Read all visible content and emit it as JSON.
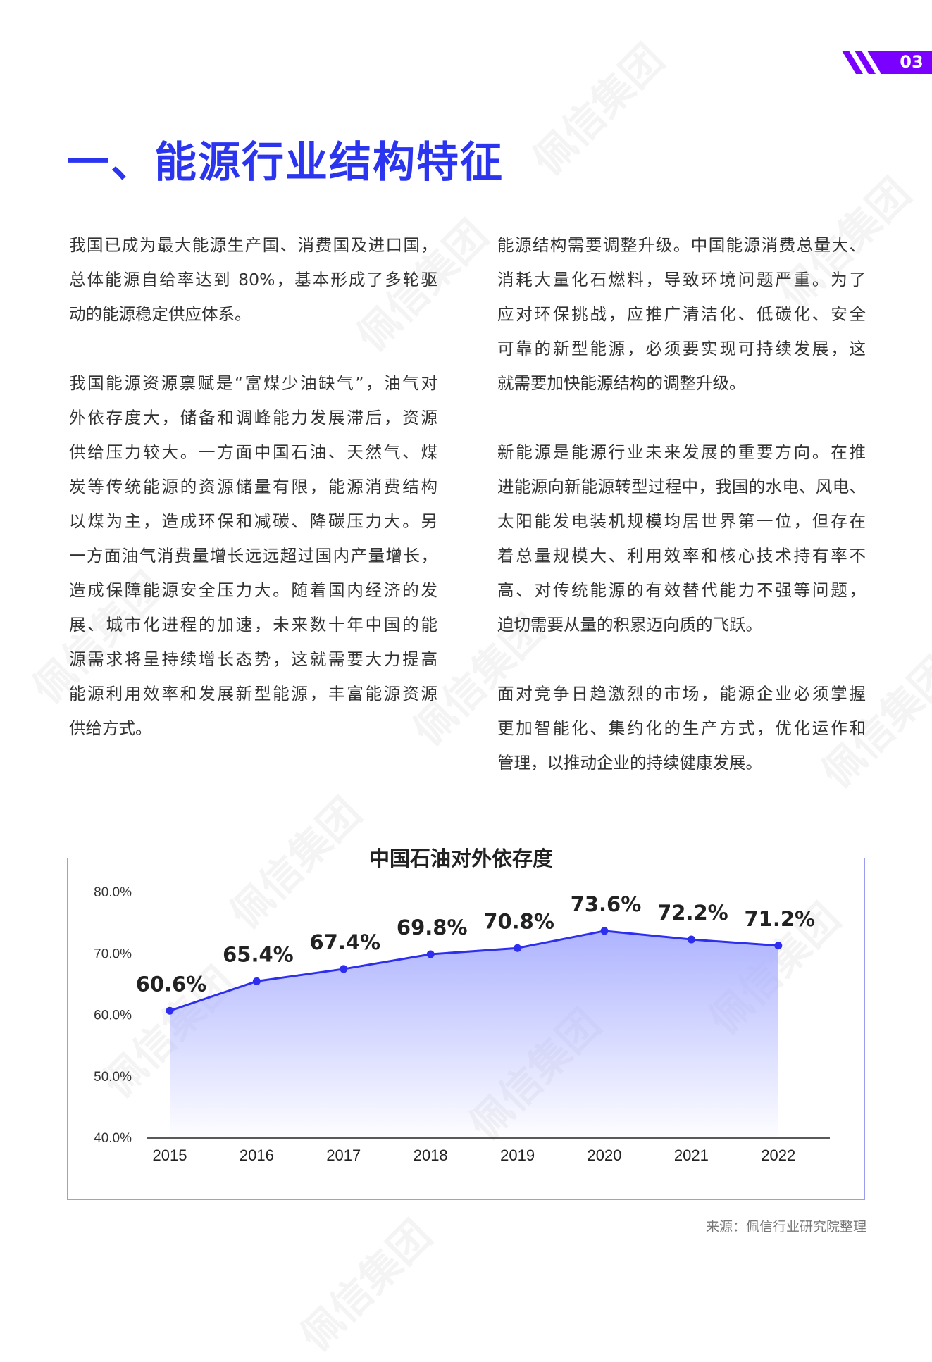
{
  "page_number": "03",
  "brand_color": "#7a00ff",
  "accent_color": "#2b35f0",
  "watermark": "佩信集团",
  "section_title": "一、能源行业结构特征",
  "left_column": [
    [
      "我国已成为最大能源生产国、消费国及进口国，",
      "总体能源自给率达到 80%，基本形成了多轮驱",
      "动的能源稳定供应体系。"
    ],
    [
      "我国能源资源禀赋是“富煤少油缺气”，油气对",
      "外依存度大，储备和调峰能力发展滞后，资源",
      "供给压力较大。一方面中国石油、天然气、煤",
      "炭等传统能源的资源储量有限，能源消费结构",
      "以煤为主，造成环保和减碳、降碳压力大。另",
      "一方面油气消费量增长远远超过国内产量增长，",
      "造成保障能源安全压力大。随着国内经济的发",
      "展、城市化进程的加速，未来数十年中国的能",
      "源需求将呈持续增长态势，这就需要大力提高",
      "能源利用效率和发展新型能源，丰富能源资源",
      "供给方式。"
    ]
  ],
  "right_column": [
    [
      "能源结构需要调整升级。中国能源消费总量大、",
      "消耗大量化石燃料，导致环境问题严重。为了",
      "应对环保挑战，应推广清洁化、低碳化、安全",
      "可靠的新型能源，必须要实现可持续发展，这",
      "就需要加快能源结构的调整升级。"
    ],
    [
      "新能源是能源行业未来发展的重要方向。在推",
      "进能源向新能源转型过程中，我国的水电、风电、",
      "太阳能发电装机规模均居世界第一位，但存在",
      "着总量规模大、利用效率和核心技术持有率不",
      "高、对传统能源的有效替代能力不强等问题，",
      "迫切需要从量的积累迈向质的飞跃。"
    ],
    [
      "面对竞争日趋激烈的市场，能源企业必须掌握",
      "更加智能化、集约化的生产方式，优化运作和",
      "管理，以推动企业的持续健康发展。"
    ]
  ],
  "chart_data": {
    "type": "area",
    "title": "中国石油对外依存度",
    "categories": [
      "2015",
      "2016",
      "2017",
      "2018",
      "2019",
      "2020",
      "2021",
      "2022"
    ],
    "values": [
      60.6,
      65.4,
      67.4,
      69.8,
      70.8,
      73.6,
      72.2,
      71.2
    ],
    "data_labels": [
      "60.6%",
      "65.4%",
      "67.4%",
      "69.8%",
      "70.8%",
      "73.6%",
      "72.2%",
      "71.2%"
    ],
    "ylim": [
      40,
      80
    ],
    "y_ticks": [
      "40.0%",
      "50.0%",
      "60.0%",
      "70.0%",
      "80.0%"
    ],
    "xlabel": "",
    "ylabel": "",
    "grid": false,
    "line_color": "#2e2ef0",
    "fill_color": "#aab0ff"
  },
  "source": "来源：佩信行业研究院整理"
}
